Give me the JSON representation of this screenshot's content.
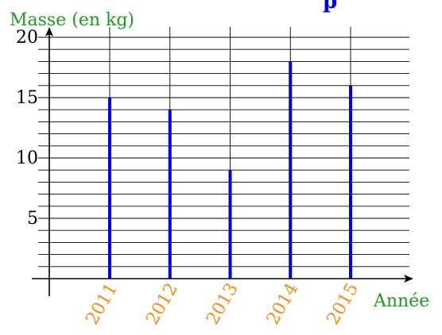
{
  "colors": {
    "bars": "#0000ee",
    "axis_labels": "#1e9a1e",
    "tick_year_labels": "#ff8c1a",
    "grid": "#000000",
    "axes": "#000000",
    "title_fragment": "#0000ee"
  },
  "title_fragment": "p",
  "chart_data": {
    "type": "bar",
    "title": "",
    "xlabel": "Année",
    "ylabel": "Masse (en kg)",
    "categories": [
      "2011",
      "2012",
      "2013",
      "2014",
      "2015"
    ],
    "values": [
      15,
      14,
      9,
      18,
      16
    ],
    "ylim": [
      0,
      20
    ],
    "y_ticks": [
      "5",
      "10",
      "15",
      "20"
    ],
    "y_minor_step": 1,
    "grid": true,
    "legend": "none"
  }
}
